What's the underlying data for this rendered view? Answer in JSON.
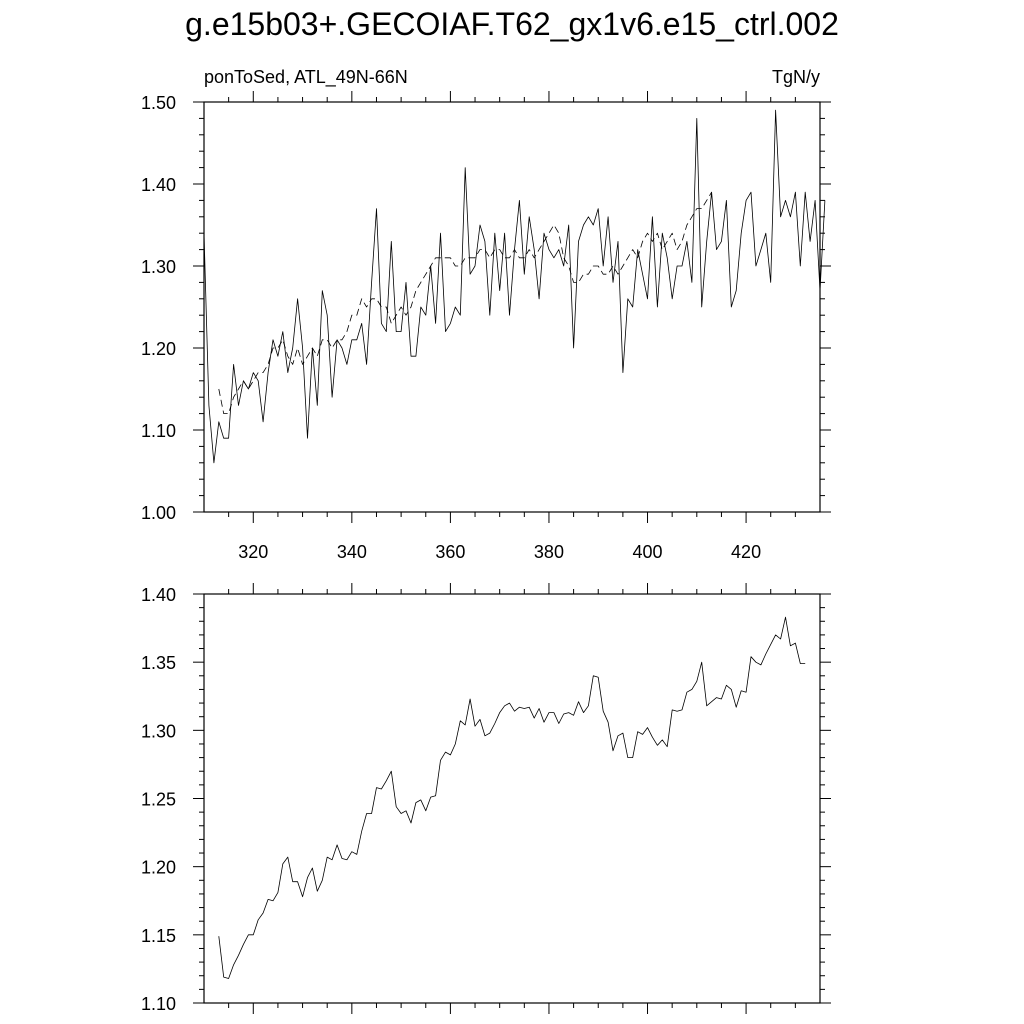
{
  "title": "g.e15b03+.GECOIAF.T62_gx1v6.e15_ctrl.002",
  "chart_data": [
    {
      "type": "line",
      "left_label": "ponToSed, ATL_49N-66N",
      "right_label": "TgN/y",
      "xlim": [
        310,
        435
      ],
      "ylim": [
        1.0,
        1.5
      ],
      "xticks": [
        "320",
        "340",
        "360",
        "380",
        "400",
        "420"
      ],
      "yticks": [
        "1.00",
        "1.10",
        "1.20",
        "1.30",
        "1.40",
        "1.50"
      ],
      "x_start": 310,
      "series": [
        {
          "style": "solid",
          "values": [
            1.34,
            1.13,
            1.06,
            1.11,
            1.09,
            1.09,
            1.18,
            1.13,
            1.16,
            1.15,
            1.17,
            1.16,
            1.11,
            1.17,
            1.21,
            1.19,
            1.22,
            1.17,
            1.2,
            1.26,
            1.2,
            1.09,
            1.2,
            1.13,
            1.27,
            1.24,
            1.14,
            1.21,
            1.2,
            1.18,
            1.21,
            1.21,
            1.23,
            1.18,
            1.28,
            1.37,
            1.23,
            1.22,
            1.33,
            1.22,
            1.22,
            1.28,
            1.19,
            1.19,
            1.25,
            1.24,
            1.3,
            1.23,
            1.34,
            1.22,
            1.23,
            1.25,
            1.24,
            1.42,
            1.29,
            1.3,
            1.35,
            1.33,
            1.24,
            1.34,
            1.27,
            1.34,
            1.24,
            1.32,
            1.38,
            1.29,
            1.36,
            1.32,
            1.26,
            1.34,
            1.32,
            1.31,
            1.32,
            1.3,
            1.35,
            1.2,
            1.33,
            1.35,
            1.36,
            1.35,
            1.37,
            1.3,
            1.36,
            1.28,
            1.33,
            1.17,
            1.26,
            1.25,
            1.32,
            1.29,
            1.26,
            1.36,
            1.25,
            1.34,
            1.31,
            1.26,
            1.3,
            1.3,
            1.33,
            1.28,
            1.48,
            1.25,
            1.33,
            1.39,
            1.32,
            1.33,
            1.38,
            1.25,
            1.27,
            1.34,
            1.38,
            1.39,
            1.3,
            1.32,
            1.34,
            1.28,
            1.49,
            1.36,
            1.38,
            1.36,
            1.39,
            1.3,
            1.39,
            1.33,
            1.38,
            1.27,
            1.38
          ]
        },
        {
          "style": "dashed",
          "values": [
            null,
            null,
            null,
            1.15,
            1.12,
            1.12,
            1.14,
            1.15,
            1.16,
            1.15,
            1.16,
            1.17,
            1.17,
            1.18,
            1.2,
            1.2,
            1.21,
            1.19,
            1.18,
            1.2,
            1.18,
            1.19,
            1.2,
            1.19,
            1.21,
            1.21,
            1.2,
            1.21,
            1.21,
            1.22,
            1.24,
            1.24,
            1.26,
            1.25,
            1.26,
            1.26,
            1.25,
            1.25,
            1.23,
            1.24,
            1.25,
            1.24,
            1.25,
            1.27,
            1.28,
            1.29,
            1.3,
            1.31,
            1.31,
            1.31,
            1.31,
            1.3,
            1.3,
            1.31,
            1.31,
            1.31,
            1.32,
            1.32,
            1.31,
            1.32,
            1.32,
            1.31,
            1.31,
            1.32,
            1.31,
            1.31,
            1.32,
            1.31,
            1.32,
            1.33,
            1.34,
            1.35,
            1.34,
            1.31,
            1.3,
            1.28,
            1.28,
            1.29,
            1.29,
            1.3,
            1.3,
            1.29,
            1.29,
            1.3,
            1.29,
            1.3,
            1.31,
            1.32,
            1.31,
            1.33,
            1.34,
            1.33,
            1.34,
            1.32,
            1.33,
            1.34,
            1.32,
            1.33,
            1.35,
            1.36,
            1.37,
            1.37,
            1.38,
            1.39,
            null,
            null,
            null,
            null,
            null,
            null,
            null,
            null,
            null,
            null,
            null,
            null,
            null,
            null,
            null,
            null,
            null,
            null
          ]
        }
      ]
    },
    {
      "type": "line",
      "xlim": [
        310,
        435
      ],
      "ylim": [
        1.1,
        1.4
      ],
      "yticks": [
        "1.10",
        "1.15",
        "1.20",
        "1.25",
        "1.30",
        "1.35",
        "1.40"
      ],
      "x_start": 313,
      "series": [
        {
          "style": "solid",
          "values": [
            1.149,
            1.119,
            1.118,
            1.128,
            1.135,
            1.143,
            1.15,
            1.15,
            1.161,
            1.166,
            1.176,
            1.175,
            1.181,
            1.202,
            1.207,
            1.189,
            1.189,
            1.178,
            1.192,
            1.199,
            1.182,
            1.19,
            1.207,
            1.205,
            1.216,
            1.206,
            1.205,
            1.211,
            1.209,
            1.226,
            1.239,
            1.239,
            1.258,
            1.257,
            1.263,
            1.27,
            1.244,
            1.239,
            1.241,
            1.232,
            1.247,
            1.249,
            1.241,
            1.251,
            1.252,
            1.278,
            1.284,
            1.282,
            1.29,
            1.307,
            1.304,
            1.323,
            1.303,
            1.308,
            1.296,
            1.298,
            1.305,
            1.313,
            1.318,
            1.32,
            1.314,
            1.317,
            1.316,
            1.317,
            1.309,
            1.316,
            1.306,
            1.313,
            1.313,
            1.305,
            1.312,
            1.313,
            1.311,
            1.321,
            1.313,
            1.318,
            1.34,
            1.339,
            1.314,
            1.306,
            1.285,
            1.296,
            1.298,
            1.28,
            1.28,
            1.299,
            1.297,
            1.302,
            1.295,
            1.289,
            1.293,
            1.288,
            1.315,
            1.314,
            1.315,
            1.328,
            1.33,
            1.336,
            1.35,
            1.318,
            1.321,
            1.324,
            1.323,
            1.333,
            1.33,
            1.317,
            1.329,
            1.328,
            1.354,
            1.35,
            1.348,
            1.356,
            1.363,
            1.37,
            1.367,
            1.383,
            1.362,
            1.364,
            1.349,
            1.349
          ]
        }
      ]
    }
  ]
}
